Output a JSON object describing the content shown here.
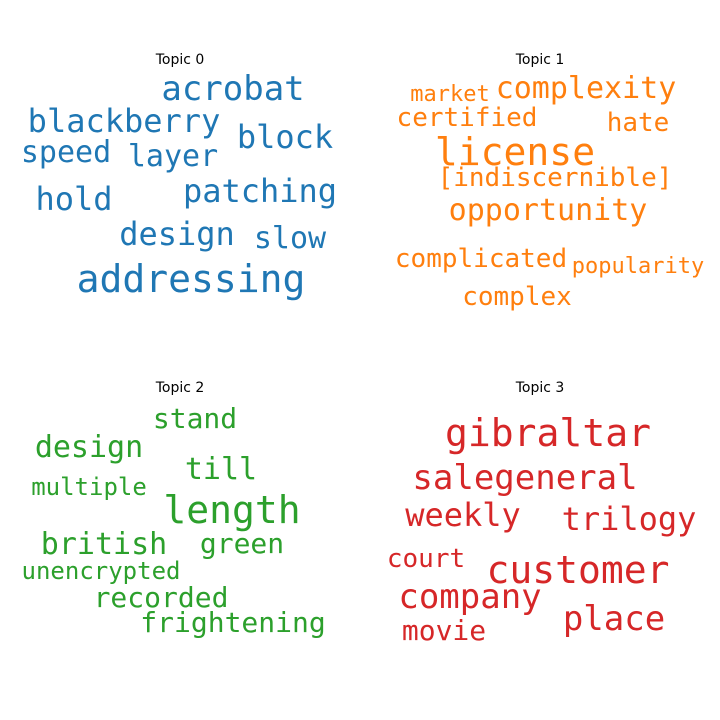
{
  "chart_data": [
    {
      "type": "wordcloud",
      "title": "Topic 0",
      "color": "#1f77b4",
      "words": [
        "addressing",
        "acrobat",
        "blackberry",
        "block",
        "patching",
        "layer",
        "speed",
        "hold",
        "design",
        "slow"
      ]
    },
    {
      "type": "wordcloud",
      "title": "Topic 1",
      "color": "#ff7f0e",
      "words": [
        "license",
        "complexity",
        "market",
        "certified",
        "hate",
        "[indiscernible]",
        "opportunity",
        "complicated",
        "popularity",
        "complex"
      ]
    },
    {
      "type": "wordcloud",
      "title": "Topic 2",
      "color": "#2ca02c",
      "words": [
        "length",
        "stand",
        "design",
        "till",
        "multiple",
        "british",
        "green",
        "unencrypted",
        "recorded",
        "frightening"
      ]
    },
    {
      "type": "wordcloud",
      "title": "Topic 3",
      "color": "#d62728",
      "words": [
        "gibraltar",
        "salegeneral",
        "weekly",
        "trilogy",
        "customer",
        "court",
        "company",
        "place",
        "movie"
      ]
    }
  ]
}
